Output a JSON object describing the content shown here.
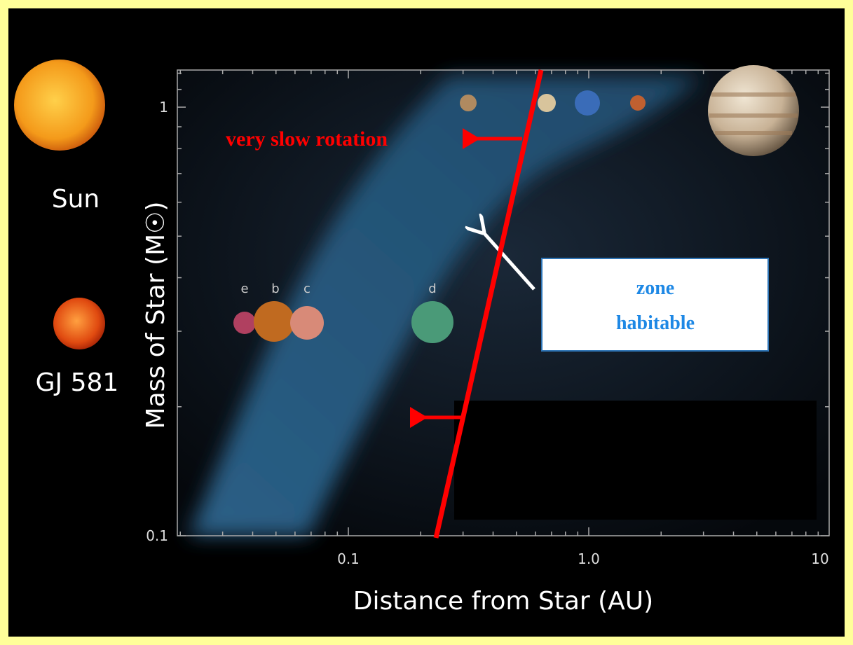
{
  "axes": {
    "x_label": "Distance from Star (AU)",
    "y_label": "Mass of Star (M☉)",
    "x_ticks": [
      "0.1",
      "1.0",
      "10"
    ],
    "y_ticks": [
      "1",
      "0.1"
    ]
  },
  "stars": [
    "Sun",
    "GJ 581"
  ],
  "planets": [
    "e",
    "b",
    "c",
    "d"
  ],
  "annotation": "very slow rotation",
  "box": [
    "zone",
    "habitable"
  ]
}
